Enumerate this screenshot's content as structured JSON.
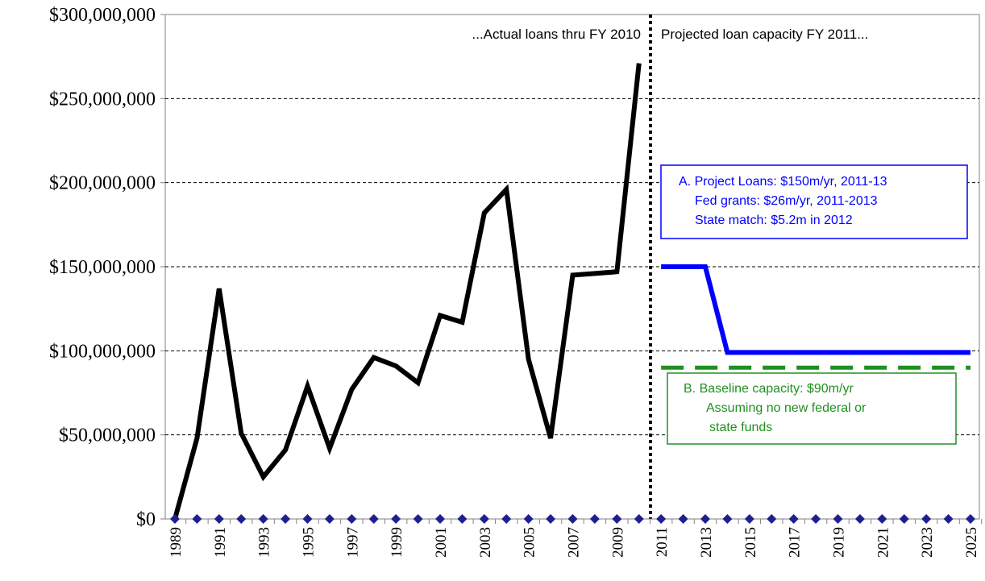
{
  "chart_data": {
    "type": "line",
    "categories": [
      "1989",
      null,
      "1991",
      null,
      "1993",
      null,
      "1995",
      null,
      "1997",
      null,
      "1999",
      null,
      "2001",
      null,
      "2003",
      null,
      "2005",
      null,
      "2007",
      null,
      "2009",
      null,
      "2011",
      null,
      "2013",
      null,
      "2015",
      null,
      "2017",
      null,
      "2019",
      null,
      "2021",
      null,
      "2023",
      null,
      "2025"
    ],
    "series": [
      {
        "color": "#000000",
        "dash": false,
        "values": [
          0,
          48000000,
          137000000,
          51000000,
          25000000,
          41000000,
          79000000,
          42000000,
          77000000,
          96000000,
          91000000,
          81000000,
          121000000,
          117000000,
          182000000,
          196000000,
          95000000,
          48000000,
          145000000,
          146000000,
          147000000,
          271000000,
          null,
          null,
          null,
          null,
          null,
          null,
          null,
          null,
          null,
          null,
          null,
          null,
          null,
          null,
          null
        ]
      },
      {
        "color": "#0000ff",
        "dash": false,
        "values": [
          null,
          null,
          null,
          null,
          null,
          null,
          null,
          null,
          null,
          null,
          null,
          null,
          null,
          null,
          null,
          null,
          null,
          null,
          null,
          null,
          null,
          null,
          150000000,
          150000000,
          150000000,
          99000000,
          99000000,
          99000000,
          99000000,
          99000000,
          99000000,
          99000000,
          99000000,
          99000000,
          99000000,
          99000000,
          99000000
        ]
      },
      {
        "color": "#209020",
        "dash": true,
        "values": [
          null,
          null,
          null,
          null,
          null,
          null,
          null,
          null,
          null,
          null,
          null,
          null,
          null,
          null,
          null,
          null,
          null,
          null,
          null,
          null,
          null,
          null,
          90000000,
          90000000,
          90000000,
          90000000,
          90000000,
          90000000,
          90000000,
          90000000,
          90000000,
          90000000,
          90000000,
          90000000,
          90000000,
          90000000,
          90000000
        ]
      },
      {
        "color": "#1f1f8f",
        "markers": true,
        "values": [
          0,
          0,
          0,
          0,
          0,
          0,
          0,
          0,
          0,
          0,
          0,
          0,
          0,
          0,
          0,
          0,
          0,
          0,
          0,
          0,
          0,
          0,
          0,
          0,
          0,
          0,
          0,
          0,
          0,
          0,
          0,
          0,
          0,
          0,
          0,
          0,
          0
        ]
      }
    ],
    "ylim": [
      0,
      300000000
    ],
    "yticks": [
      {
        "value": 0,
        "label": "$0"
      },
      {
        "value": 50000000,
        "label": "$50,000,000"
      },
      {
        "value": 100000000,
        "label": "$100,000,000"
      },
      {
        "value": 150000000,
        "label": "$150,000,000"
      },
      {
        "value": 200000000,
        "label": "$200,000,000"
      },
      {
        "value": 250000000,
        "label": "$250,000,000"
      },
      {
        "value": 300000000,
        "label": "$300,000,000"
      }
    ],
    "grid": true,
    "annotations": [
      "...Actual loans thru FY 2010",
      "Projected loan capacity FY 2011..."
    ],
    "boxes": [
      {
        "color": "#0000ff",
        "lines": [
          "A. Project Loans: $150m/yr, 2011-13",
          "Fed grants: $26m/yr, 2011-2013",
          "State match:  $5.2m in 2012"
        ]
      },
      {
        "color": "#209020",
        "lines": [
          "B.  Baseline capacity: $90m/yr",
          "Assuming no new federal or",
          "state funds"
        ]
      }
    ]
  }
}
